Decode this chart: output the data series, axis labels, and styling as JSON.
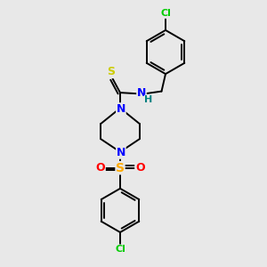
{
  "background_color": "#e8e8e8",
  "bond_color": "#000000",
  "atom_colors": {
    "N": "#0000ff",
    "S_thio": "#cccc00",
    "S_sulfonyl": "#ffaa00",
    "O": "#ff0000",
    "Cl": "#00cc00",
    "H": "#008080",
    "C": "#000000"
  },
  "lw": 1.4,
  "figsize": [
    3.0,
    3.0
  ],
  "dpi": 100
}
